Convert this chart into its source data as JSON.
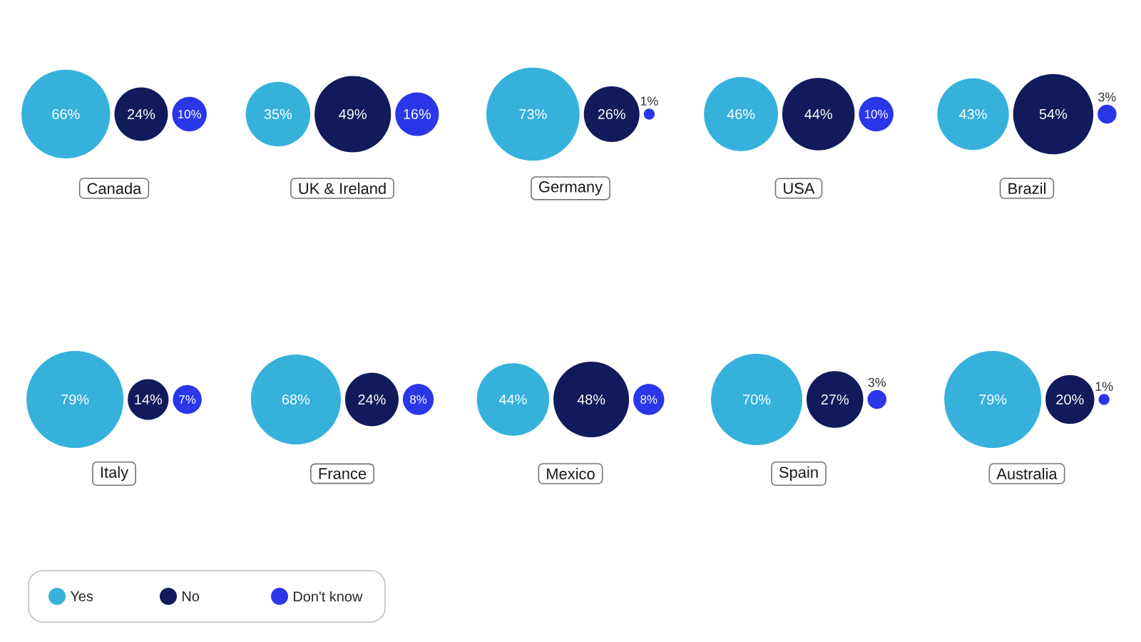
{
  "chart_data": {
    "type": "other",
    "categories": [
      "Canada",
      "UK & Ireland",
      "Germany",
      "USA",
      "Brazil",
      "Italy",
      "France",
      "Mexico",
      "Spain",
      "Australia"
    ],
    "series": [
      {
        "name": "Yes",
        "color": "#35b1dc",
        "values": [
          66,
          35,
          73,
          46,
          43,
          79,
          68,
          44,
          70,
          79
        ],
        "value_labels": [
          "66%",
          "35%",
          "73%",
          "46%",
          "43%",
          "79%",
          "68%",
          "44%",
          "70%",
          "79%"
        ]
      },
      {
        "name": "No",
        "color": "#111a5a",
        "values": [
          24,
          49,
          26,
          44,
          54,
          14,
          24,
          48,
          27,
          20
        ],
        "value_labels": [
          "24%",
          "49%",
          "26%",
          "44%",
          "54%",
          "14%",
          "24%",
          "48%",
          "27%",
          "20%"
        ]
      },
      {
        "name": "Don't know",
        "color": "#2a36e8",
        "values": [
          10,
          16,
          1,
          10,
          3,
          7,
          8,
          8,
          3,
          1
        ],
        "value_labels": [
          "10%",
          "16%",
          "1%",
          "10%",
          "3%",
          "7%",
          "8%",
          "8%",
          "3%",
          "1%"
        ]
      }
    ],
    "legend": "bottom left"
  }
}
